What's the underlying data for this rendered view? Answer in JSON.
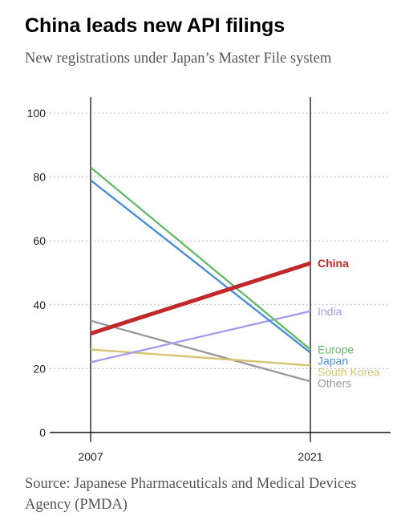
{
  "title": "China leads new API filings",
  "subtitle": "New registrations under Japan’s Master File system",
  "source": "Source: Japanese Pharmaceuticals and Medical Devices Agency (PMDA)",
  "chart_data": {
    "type": "line",
    "x": [
      "2007",
      "2021"
    ],
    "y_ticks": [
      0,
      20,
      40,
      60,
      80,
      100
    ],
    "ylim": [
      0,
      100
    ],
    "grid": true,
    "legend_placement": "direct labels at right end of lines",
    "series": [
      {
        "name": "Others",
        "values": [
          35,
          16
        ],
        "color": "#999999",
        "emphasis": false
      },
      {
        "name": "South Korea",
        "values": [
          26,
          21
        ],
        "color": "#d9c270",
        "emphasis": false
      },
      {
        "name": "India",
        "values": [
          22,
          38
        ],
        "color": "#a999f0",
        "emphasis": false
      },
      {
        "name": "Japan",
        "values": [
          79,
          25
        ],
        "color": "#4c8fd6",
        "emphasis": false
      },
      {
        "name": "Europe",
        "values": [
          83,
          26
        ],
        "color": "#68b96a",
        "emphasis": false
      },
      {
        "name": "China",
        "values": [
          31,
          53
        ],
        "color": "#c0282a",
        "emphasis": true
      }
    ]
  }
}
